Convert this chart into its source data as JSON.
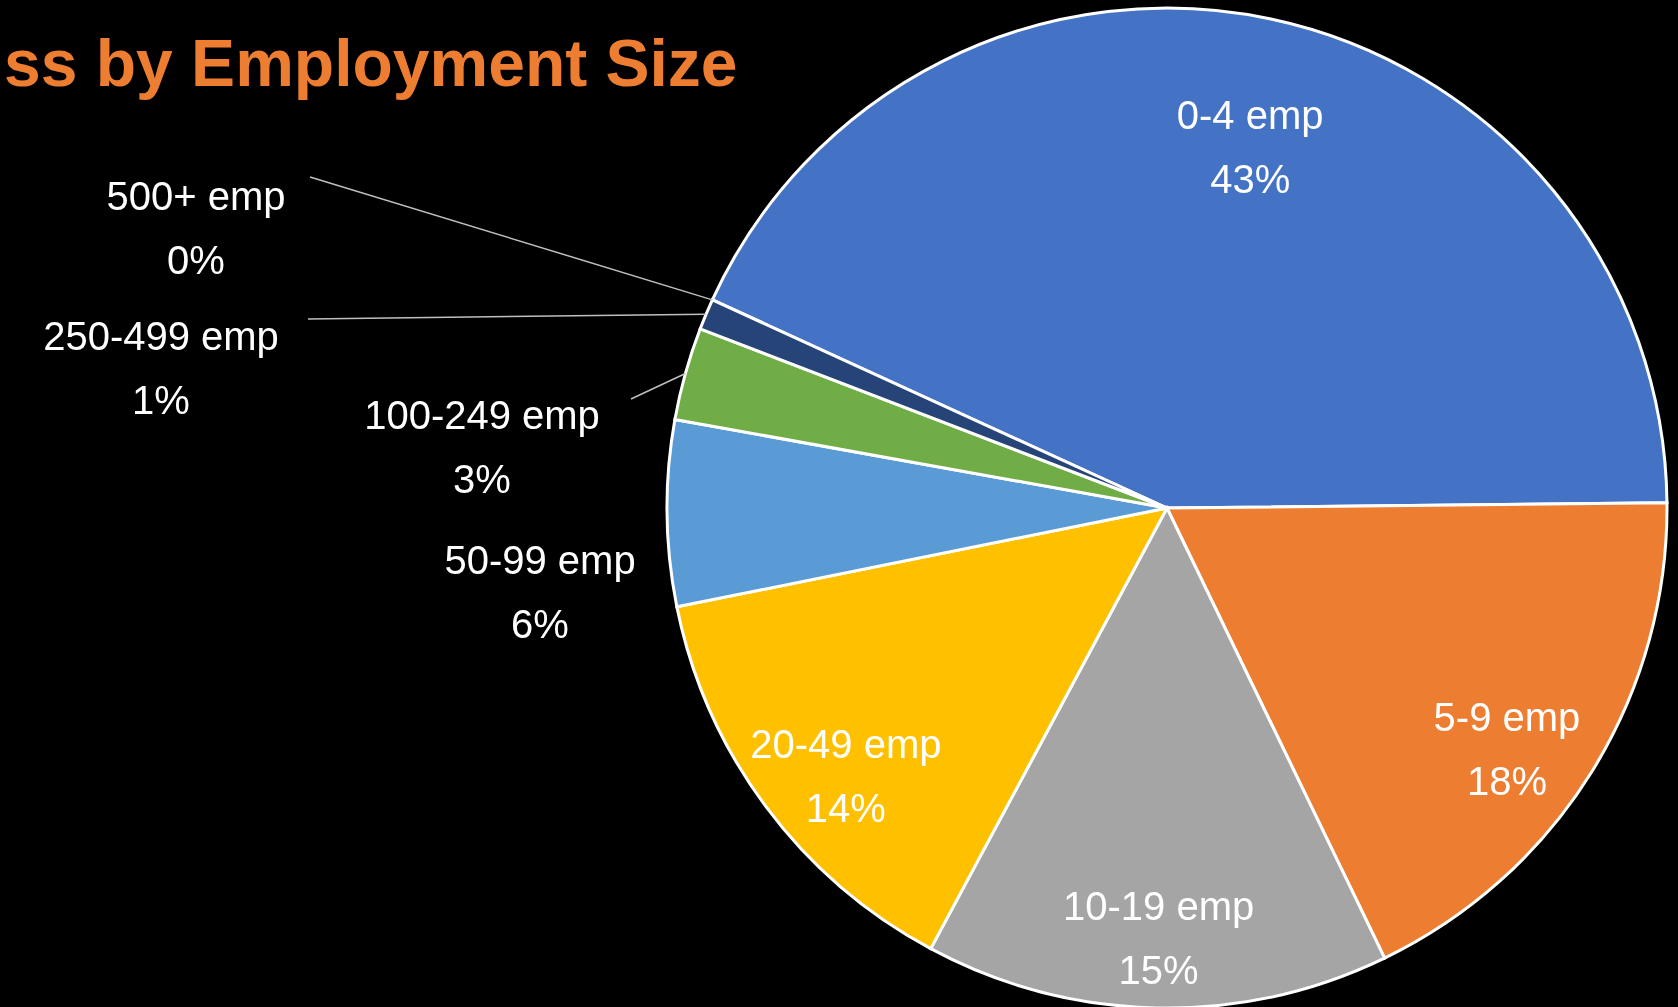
{
  "chart_data": {
    "type": "pie",
    "title": "ss by Employment Size",
    "categories": [
      "0-4 emp",
      "5-9 emp",
      "10-19 emp",
      "20-49 emp",
      "50-99 emp",
      "100-249 emp",
      "250-499 emp",
      "500+ emp"
    ],
    "values": [
      43,
      18,
      15,
      14,
      6,
      3,
      1,
      0
    ],
    "value_labels": [
      "43%",
      "18%",
      "15%",
      "14%",
      "6%",
      "3%",
      "1%",
      "0%"
    ],
    "colors": [
      "#4472c4",
      "#ed7d31",
      "#a5a5a5",
      "#ffc000",
      "#5b9bd5",
      "#70ad47",
      "#264478",
      "#9e480e"
    ]
  }
}
